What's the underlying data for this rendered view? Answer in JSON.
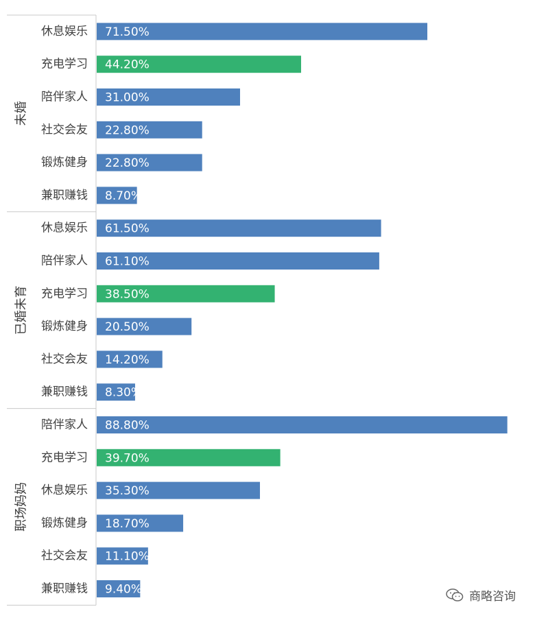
{
  "chart_data": {
    "type": "bar",
    "orientation": "horizontal",
    "xlim": [
      0,
      100
    ],
    "value_suffix": "%",
    "colors": {
      "default": "#4f81bd",
      "highlight": "#33b271"
    },
    "highlight_category": "充电学习",
    "groups": [
      {
        "label": "未婚",
        "categories": [
          "休息娱乐",
          "充电学习",
          "陪伴家人",
          "社交会友",
          "锻炼健身",
          "兼职赚钱"
        ],
        "values": [
          71.5,
          44.2,
          31.0,
          22.8,
          22.8,
          8.7
        ],
        "value_labels": [
          "71.50%",
          "44.20%",
          "31.00%",
          "22.80%",
          "22.80%",
          "8.70%"
        ]
      },
      {
        "label": "已婚未育",
        "categories": [
          "休息娱乐",
          "陪伴家人",
          "充电学习",
          "锻炼健身",
          "社交会友",
          "兼职赚钱"
        ],
        "values": [
          61.5,
          61.1,
          38.5,
          20.5,
          14.2,
          8.3
        ],
        "value_labels": [
          "61.50%",
          "61.10%",
          "38.50%",
          "20.50%",
          "14.20%",
          "8.30%"
        ]
      },
      {
        "label": "职场妈妈",
        "categories": [
          "陪伴家人",
          "充电学习",
          "休息娱乐",
          "锻炼健身",
          "社交会友",
          "兼职赚钱"
        ],
        "values": [
          88.8,
          39.7,
          35.3,
          18.7,
          11.1,
          9.4
        ],
        "value_labels": [
          "88.80%",
          "39.70%",
          "35.30%",
          "18.70%",
          "11.10%",
          "9.40%"
        ]
      }
    ]
  },
  "watermark": {
    "text": "商略咨询",
    "icon": "wechat-icon"
  }
}
